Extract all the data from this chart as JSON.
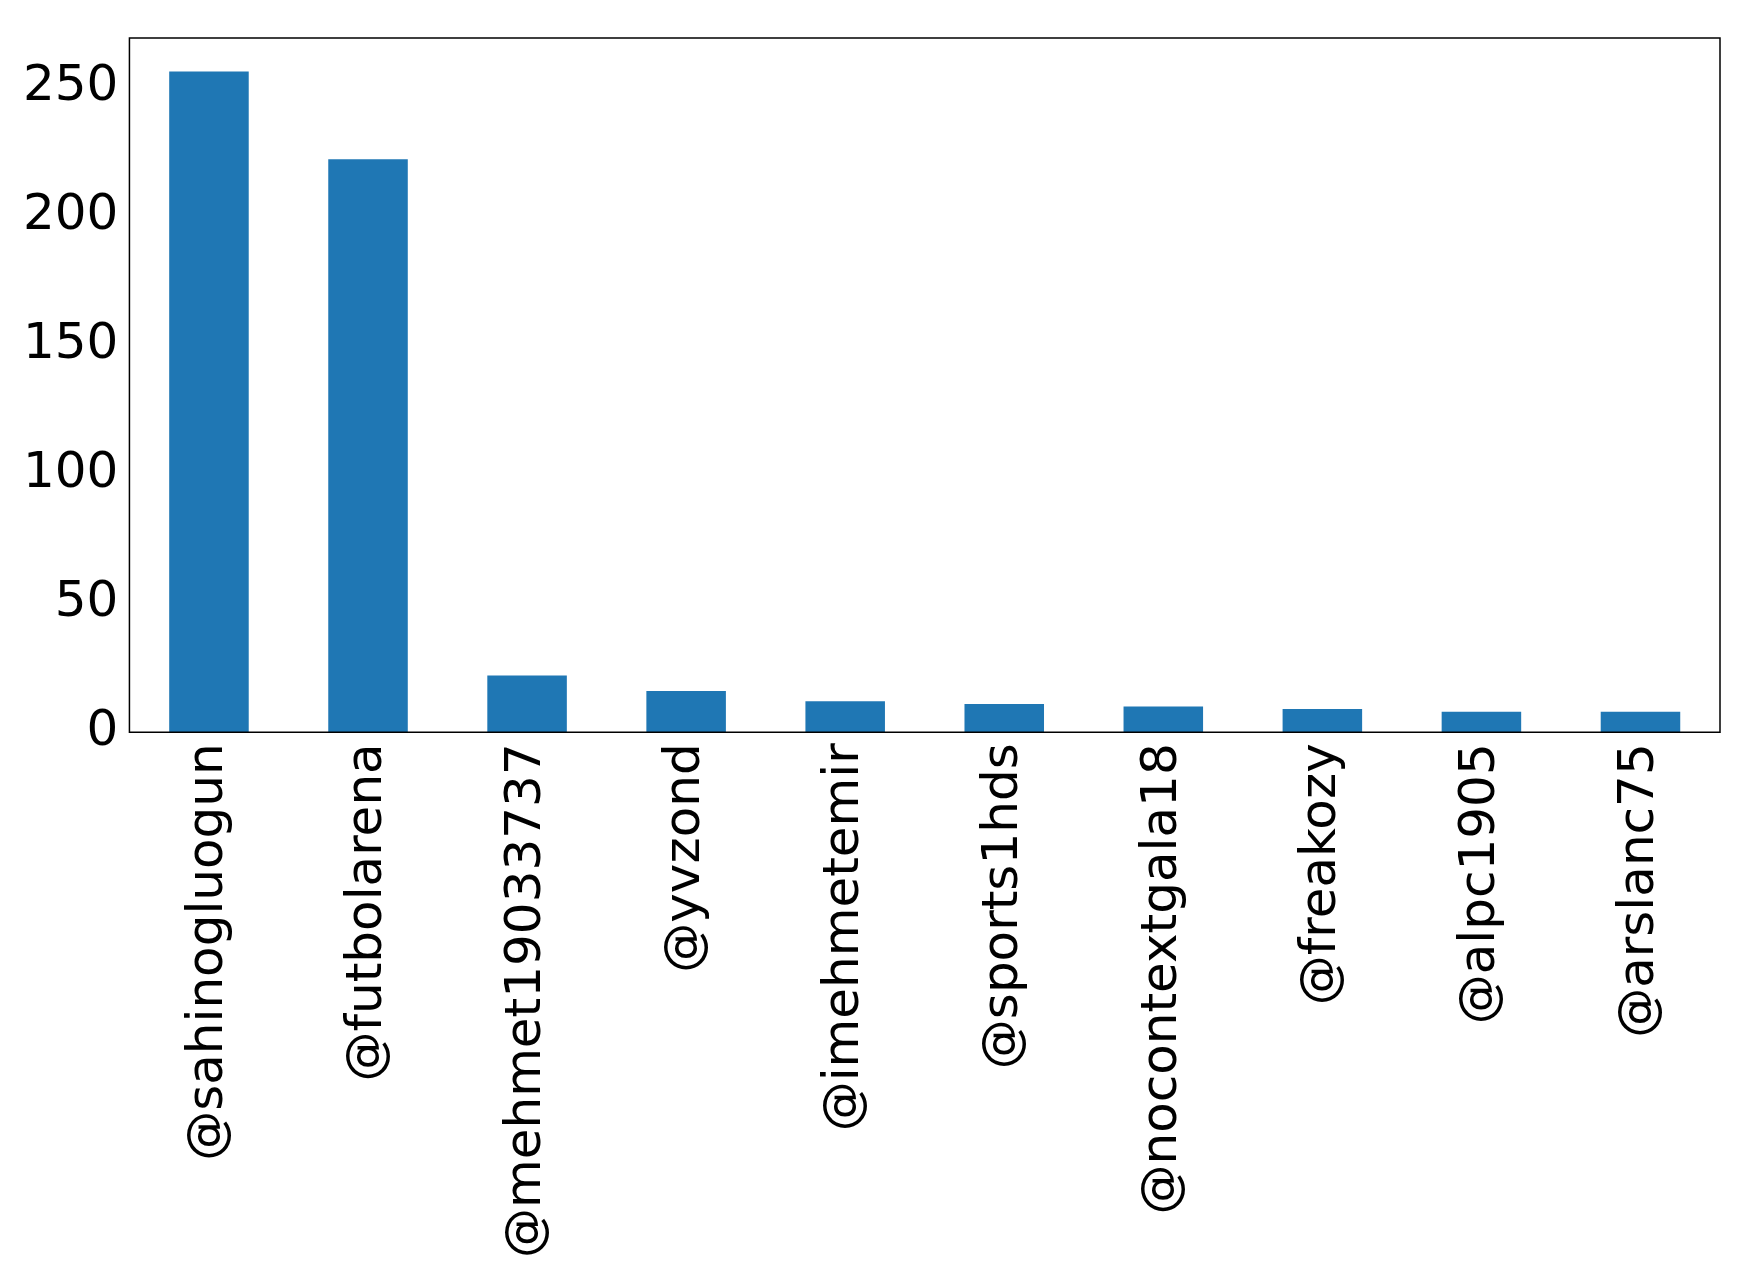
{
  "chart_data": {
    "type": "bar",
    "categories": [
      "@sahinogluogun",
      "@futbolarena",
      "@mehmet19033737",
      "@yvzond",
      "@imehmetemir",
      "@sports1hds",
      "@nocontextgala18",
      "@freakozy",
      "@alpc1905",
      "@arslanc75"
    ],
    "values": [
      256,
      222,
      22,
      16,
      12,
      11,
      10,
      9,
      8,
      8
    ],
    "color": "#1f77b4",
    "ylim": [
      0,
      269
    ],
    "yticks": [
      0,
      50,
      100,
      150,
      200,
      250
    ],
    "grid": false,
    "legend": false
  }
}
